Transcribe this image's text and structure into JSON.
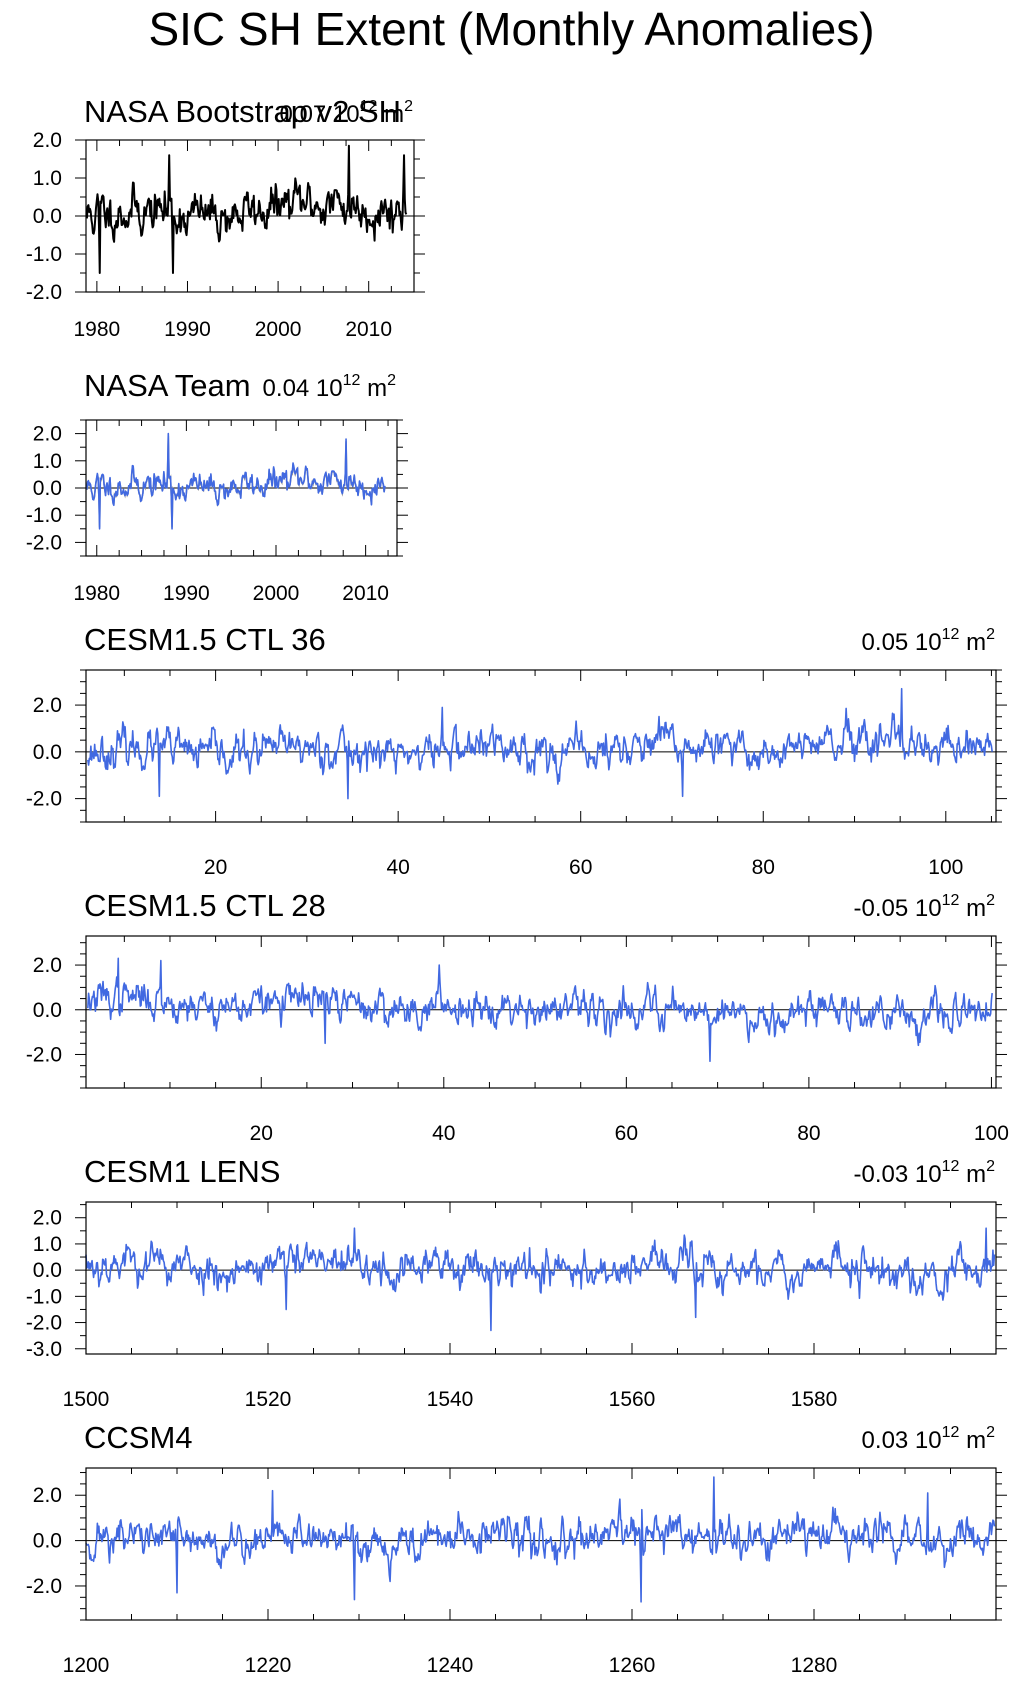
{
  "title": "SIC SH Extent (Monthly Anomalies)",
  "colors": {
    "observed": "#000000",
    "model": "#4169e1",
    "zero_line": "#000000"
  },
  "chart_data": [
    {
      "type": "line",
      "name": "NASA Bootstrap v2 SH",
      "title": "NASA Bootstrap v2 SH",
      "mean_label": "0.07 10",
      "mean_exp": "12",
      "mean_unit": " m",
      "mean_unit_exp": "2",
      "line_color": "#000000",
      "xlim": [
        1978.8,
        2015
      ],
      "ylim": [
        -2.0,
        2.0
      ],
      "xticks": [
        1980,
        1990,
        2000,
        2010
      ],
      "xtick_labels": [
        "1980",
        "1990",
        "2000",
        "2010"
      ],
      "yticks": [
        -2.0,
        -1.0,
        0.0,
        1.0,
        2.0
      ],
      "ytick_labels": [
        "-2.0",
        "-1.0",
        "0.0",
        "1.0",
        "2.0"
      ],
      "x_start": 1978.9,
      "x_step": 0.08333,
      "seed": 11,
      "n": 424,
      "sd": 0.45,
      "trend": [
        0.0,
        0.3
      ],
      "spikes": [
        [
          1988.0,
          1.6
        ],
        [
          1988.4,
          -1.5
        ],
        [
          2007.8,
          1.85
        ],
        [
          2013.9,
          1.6
        ],
        [
          1980.3,
          -1.5
        ]
      ]
    },
    {
      "type": "line",
      "name": "NASA Team",
      "title": "NASA Team",
      "mean_label": "0.04 10",
      "mean_exp": "12",
      "mean_unit": " m",
      "mean_unit_exp": "2",
      "line_color": "#4169e1",
      "shadow_color": "#999999",
      "xlim": [
        1978.8,
        2013.5
      ],
      "ylim": [
        -2.5,
        2.5
      ],
      "xticks": [
        1980,
        1990,
        2000,
        2010
      ],
      "xtick_labels": [
        "1980",
        "1990",
        "2000",
        "2010"
      ],
      "yticks": [
        -2.0,
        -1.0,
        0.0,
        1.0,
        2.0
      ],
      "ytick_labels": [
        "-2.0",
        "-1.0",
        "0.0",
        "1.0",
        "2.0"
      ],
      "x_start": 1978.9,
      "x_step": 0.08333,
      "seed": 11,
      "n": 400,
      "sd": 0.42,
      "trend": [
        0.0,
        0.25
      ],
      "spikes": [
        [
          1988.0,
          2.0
        ],
        [
          1988.4,
          -1.5
        ],
        [
          2007.8,
          1.8
        ],
        [
          1980.3,
          -1.5
        ]
      ]
    },
    {
      "type": "line",
      "name": "CESM1.5 CTL 36",
      "title": "CESM1.5 CTL 36",
      "mean_label": "0.05 10",
      "mean_exp": "12",
      "mean_unit": " m",
      "mean_unit_exp": "2",
      "line_color": "#4169e1",
      "xlim": [
        5.8,
        105.5
      ],
      "ylim": [
        -3.0,
        3.5
      ],
      "xticks": [
        20,
        40,
        60,
        80,
        100
      ],
      "xtick_labels": [
        "20",
        "40",
        "60",
        "80",
        "100"
      ],
      "yticks": [
        -2.0,
        0.0,
        2.0
      ],
      "ytick_labels": [
        "-2.0",
        "0.0",
        "2.0"
      ],
      "x_start": 6.0,
      "x_step": 0.08333,
      "seed": 23,
      "n": 1190,
      "sd": 0.62,
      "trend": [
        0.0,
        0.2
      ],
      "spikes": [
        [
          95.2,
          2.7
        ],
        [
          44.8,
          1.9
        ],
        [
          34.5,
          -2.0
        ],
        [
          13.8,
          -1.9
        ],
        [
          71.2,
          -1.9
        ]
      ]
    },
    {
      "type": "line",
      "name": "CESM1.5 CTL 28",
      "title": "CESM1.5 CTL 28",
      "mean_label": "-0.05 10",
      "mean_exp": "12",
      "mean_unit": " m",
      "mean_unit_exp": "2",
      "line_color": "#4169e1",
      "xlim": [
        0.8,
        100.5
      ],
      "ylim": [
        -3.5,
        3.3
      ],
      "xticks": [
        20,
        40,
        60,
        80,
        100
      ],
      "xtick_labels": [
        "20",
        "40",
        "60",
        "80",
        "100"
      ],
      "yticks": [
        -2.0,
        0.0,
        2.0
      ],
      "ytick_labels": [
        "-2.0",
        "0.0",
        "2.0"
      ],
      "x_start": 1.0,
      "x_step": 0.08333,
      "seed": 37,
      "n": 1190,
      "sd": 0.6,
      "trend": [
        0.4,
        -0.2
      ],
      "spikes": [
        [
          4.3,
          2.3
        ],
        [
          9.0,
          2.2
        ],
        [
          69.2,
          -2.3
        ],
        [
          39.5,
          2.0
        ],
        [
          27.0,
          -1.5
        ]
      ]
    },
    {
      "type": "line",
      "name": "CESM1 LENS",
      "title": "CESM1 LENS",
      "mean_label": "-0.03 10",
      "mean_exp": "12",
      "mean_unit": " m",
      "mean_unit_exp": "2",
      "line_color": "#4169e1",
      "xlim": [
        1500,
        1600
      ],
      "ylim": [
        -3.2,
        2.6
      ],
      "xticks": [
        1500,
        1520,
        1540,
        1560,
        1580
      ],
      "xtick_labels": [
        "1500",
        "1520",
        "1540",
        "1560",
        "1580"
      ],
      "yticks": [
        -3.0,
        -2.0,
        -1.0,
        0.0,
        1.0,
        2.0
      ],
      "ytick_labels": [
        "-3.0",
        "-2.0",
        "-1.0",
        "0.0",
        "1.0",
        "2.0"
      ],
      "x_start": 1500.0,
      "x_step": 0.08333,
      "seed": 53,
      "n": 1199,
      "sd": 0.55,
      "trend": [
        0.2,
        0.0
      ],
      "spikes": [
        [
          1544.5,
          -2.3
        ],
        [
          1529.5,
          1.6
        ],
        [
          1598.9,
          1.6
        ],
        [
          1522.0,
          -1.5
        ],
        [
          1567.0,
          -1.8
        ]
      ]
    },
    {
      "type": "line",
      "name": "CCSM4",
      "title": "CCSM4",
      "mean_label": "0.03 10",
      "mean_exp": "12",
      "mean_unit": " m",
      "mean_unit_exp": "2",
      "line_color": "#4169e1",
      "xlim": [
        1200,
        1300
      ],
      "ylim": [
        -3.5,
        3.2
      ],
      "xticks": [
        1200,
        1220,
        1240,
        1260,
        1280
      ],
      "xtick_labels": [
        "1200",
        "1220",
        "1240",
        "1260",
        "1280"
      ],
      "yticks": [
        -2.0,
        0.0,
        2.0
      ],
      "ytick_labels": [
        "-2.0",
        "0.0",
        "2.0"
      ],
      "x_start": 1200.0,
      "x_step": 0.08333,
      "seed": 71,
      "n": 1199,
      "sd": 0.65,
      "trend": [
        0.0,
        0.2
      ],
      "spikes": [
        [
          1269.0,
          2.8
        ],
        [
          1229.5,
          -2.6
        ],
        [
          1261.0,
          -2.7
        ],
        [
          1210.0,
          -2.3
        ],
        [
          1292.5,
          2.1
        ],
        [
          1220.5,
          2.2
        ]
      ]
    }
  ]
}
